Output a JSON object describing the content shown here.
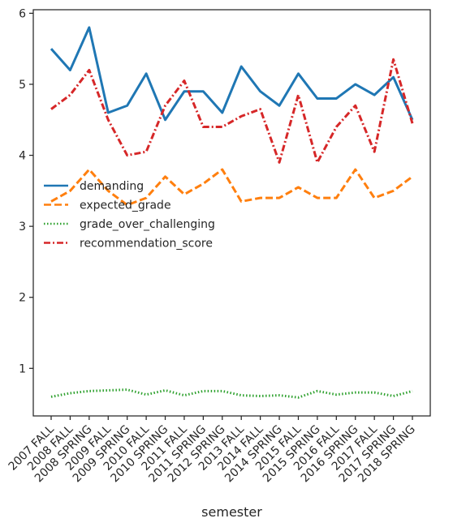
{
  "chart_data": {
    "type": "line",
    "xlabel": "semester",
    "ylabel": "",
    "ylim": [
      0.33,
      6.05
    ],
    "yticks": [
      1,
      2,
      3,
      4,
      5,
      6
    ],
    "grid": false,
    "legend_position": "center-left",
    "categories": [
      "2007 FALL",
      "2008 FALL",
      "2008 SPRING",
      "2009 FALL",
      "2009 SPRING",
      "2010 FALL",
      "2010 SPRING",
      "2011 FALL",
      "2011 SPRING",
      "2012 SPRING",
      "2013 FALL",
      "2014 FALL",
      "2014 SPRING",
      "2015 FALL",
      "2015 SPRING",
      "2016 FALL",
      "2016 SPRING",
      "2017 FALL",
      "2017 SPRING",
      "2018 SPRING"
    ],
    "series": [
      {
        "name": "demanding",
        "color": "#1f77b4",
        "dash": "solid",
        "values": [
          5.5,
          5.2,
          5.8,
          4.6,
          4.7,
          5.15,
          4.5,
          4.9,
          4.9,
          4.6,
          5.25,
          4.9,
          4.7,
          5.15,
          4.8,
          4.8,
          5.0,
          4.85,
          5.1,
          4.5
        ]
      },
      {
        "name": "expected_grade",
        "color": "#ff7f0e",
        "dash": "dashed",
        "values": [
          3.35,
          3.5,
          3.8,
          3.5,
          3.3,
          3.4,
          3.7,
          3.45,
          3.6,
          3.8,
          3.35,
          3.4,
          3.4,
          3.55,
          3.4,
          3.4,
          3.8,
          3.4,
          3.5,
          3.7
        ]
      },
      {
        "name": "grade_over_challenging",
        "color": "#2ca02c",
        "dash": "dotted",
        "values": [
          0.6,
          0.65,
          0.68,
          0.69,
          0.7,
          0.63,
          0.69,
          0.62,
          0.68,
          0.68,
          0.62,
          0.61,
          0.62,
          0.59,
          0.68,
          0.63,
          0.66,
          0.66,
          0.61,
          0.68
        ]
      },
      {
        "name": "recommendation_score",
        "color": "#d62728",
        "dash": "dashdot",
        "values": [
          4.65,
          4.85,
          5.2,
          4.5,
          4.0,
          4.05,
          4.7,
          5.05,
          4.4,
          4.4,
          4.55,
          4.65,
          3.9,
          4.85,
          3.9,
          4.4,
          4.7,
          4.05,
          5.35,
          4.45
        ]
      }
    ]
  }
}
